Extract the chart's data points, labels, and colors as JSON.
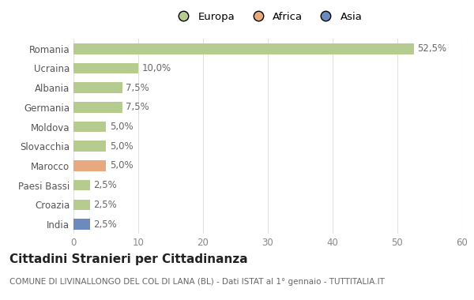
{
  "countries": [
    "Romania",
    "Ucraina",
    "Albania",
    "Germania",
    "Moldova",
    "Slovacchia",
    "Marocco",
    "Paesi Bassi",
    "Croazia",
    "India"
  ],
  "values": [
    52.5,
    10.0,
    7.5,
    7.5,
    5.0,
    5.0,
    5.0,
    2.5,
    2.5,
    2.5
  ],
  "labels": [
    "52,5%",
    "10,0%",
    "7,5%",
    "7,5%",
    "5,0%",
    "5,0%",
    "5,0%",
    "2,5%",
    "2,5%",
    "2,5%"
  ],
  "continents": [
    "Europa",
    "Europa",
    "Europa",
    "Europa",
    "Europa",
    "Europa",
    "Africa",
    "Europa",
    "Europa",
    "Asia"
  ],
  "colors": {
    "Europa": "#b5cc8e",
    "Africa": "#e8a97e",
    "Asia": "#6b8abf"
  },
  "legend": [
    "Europa",
    "Africa",
    "Asia"
  ],
  "legend_colors": [
    "#b5cc8e",
    "#e8a97e",
    "#6b8abf"
  ],
  "xlim": [
    0,
    60
  ],
  "xticks": [
    0,
    10,
    20,
    30,
    40,
    50,
    60
  ],
  "title": "Cittadini Stranieri per Cittadinanza",
  "subtitle": "COMUNE DI LIVINALLONGO DEL COL DI LANA (BL) - Dati ISTAT al 1° gennaio - TUTTITALIA.IT",
  "background_color": "#ffffff",
  "grid_color": "#e0e0e0",
  "bar_height": 0.55,
  "title_fontsize": 11,
  "subtitle_fontsize": 7.5,
  "label_fontsize": 8.5,
  "tick_fontsize": 8.5,
  "legend_fontsize": 9.5
}
